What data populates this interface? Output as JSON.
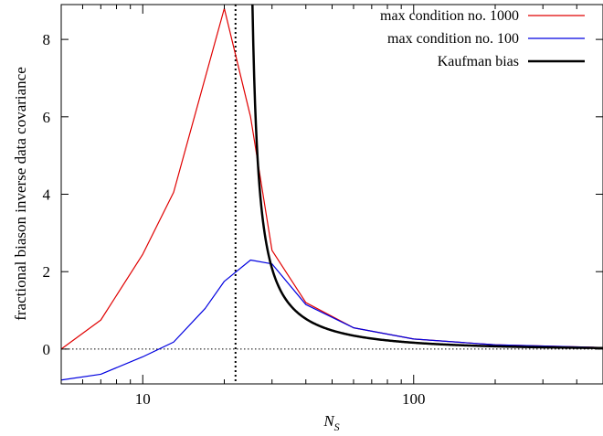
{
  "chart_data": {
    "type": "line",
    "xlabel": "N",
    "xlabel_sub": "S",
    "ylabel": "fractional biason inverse data covariance",
    "xscale": "log",
    "xlim": [
      5,
      500
    ],
    "ylim": [
      -0.9,
      8.9
    ],
    "xticks": [
      10,
      100
    ],
    "xtick_labels": [
      "10",
      "100"
    ],
    "yticks": [
      0,
      2,
      4,
      6,
      8
    ],
    "ytick_labels": [
      "0",
      "2",
      "4",
      "6",
      "8"
    ],
    "zero_line": 0,
    "vertical_marker_x": 22,
    "legend_position": "top-right",
    "series": [
      {
        "name": "max condition no. 1000",
        "color": "#e00000",
        "x": [
          5,
          7,
          10,
          13,
          20,
          25,
          30,
          40,
          60,
          100,
          200,
          500
        ],
        "y": [
          0.0,
          0.75,
          2.45,
          4.05,
          8.8,
          6.0,
          2.55,
          1.2,
          0.55,
          0.26,
          0.11,
          0.04
        ]
      },
      {
        "name": "max condition no. 100",
        "color": "#0000e0",
        "x": [
          5,
          7,
          10,
          13,
          17,
          20,
          25,
          30,
          40,
          60,
          100,
          200,
          500
        ],
        "y": [
          -0.8,
          -0.65,
          -0.2,
          0.18,
          1.05,
          1.75,
          2.3,
          2.2,
          1.15,
          0.55,
          0.26,
          0.11,
          0.04
        ]
      },
      {
        "name": "Kaufman bias",
        "color": "#000000",
        "curve": "B/(x-C)",
        "B": 12.5,
        "C": 24,
        "x_start": 25.4,
        "x_end": 500
      }
    ]
  }
}
